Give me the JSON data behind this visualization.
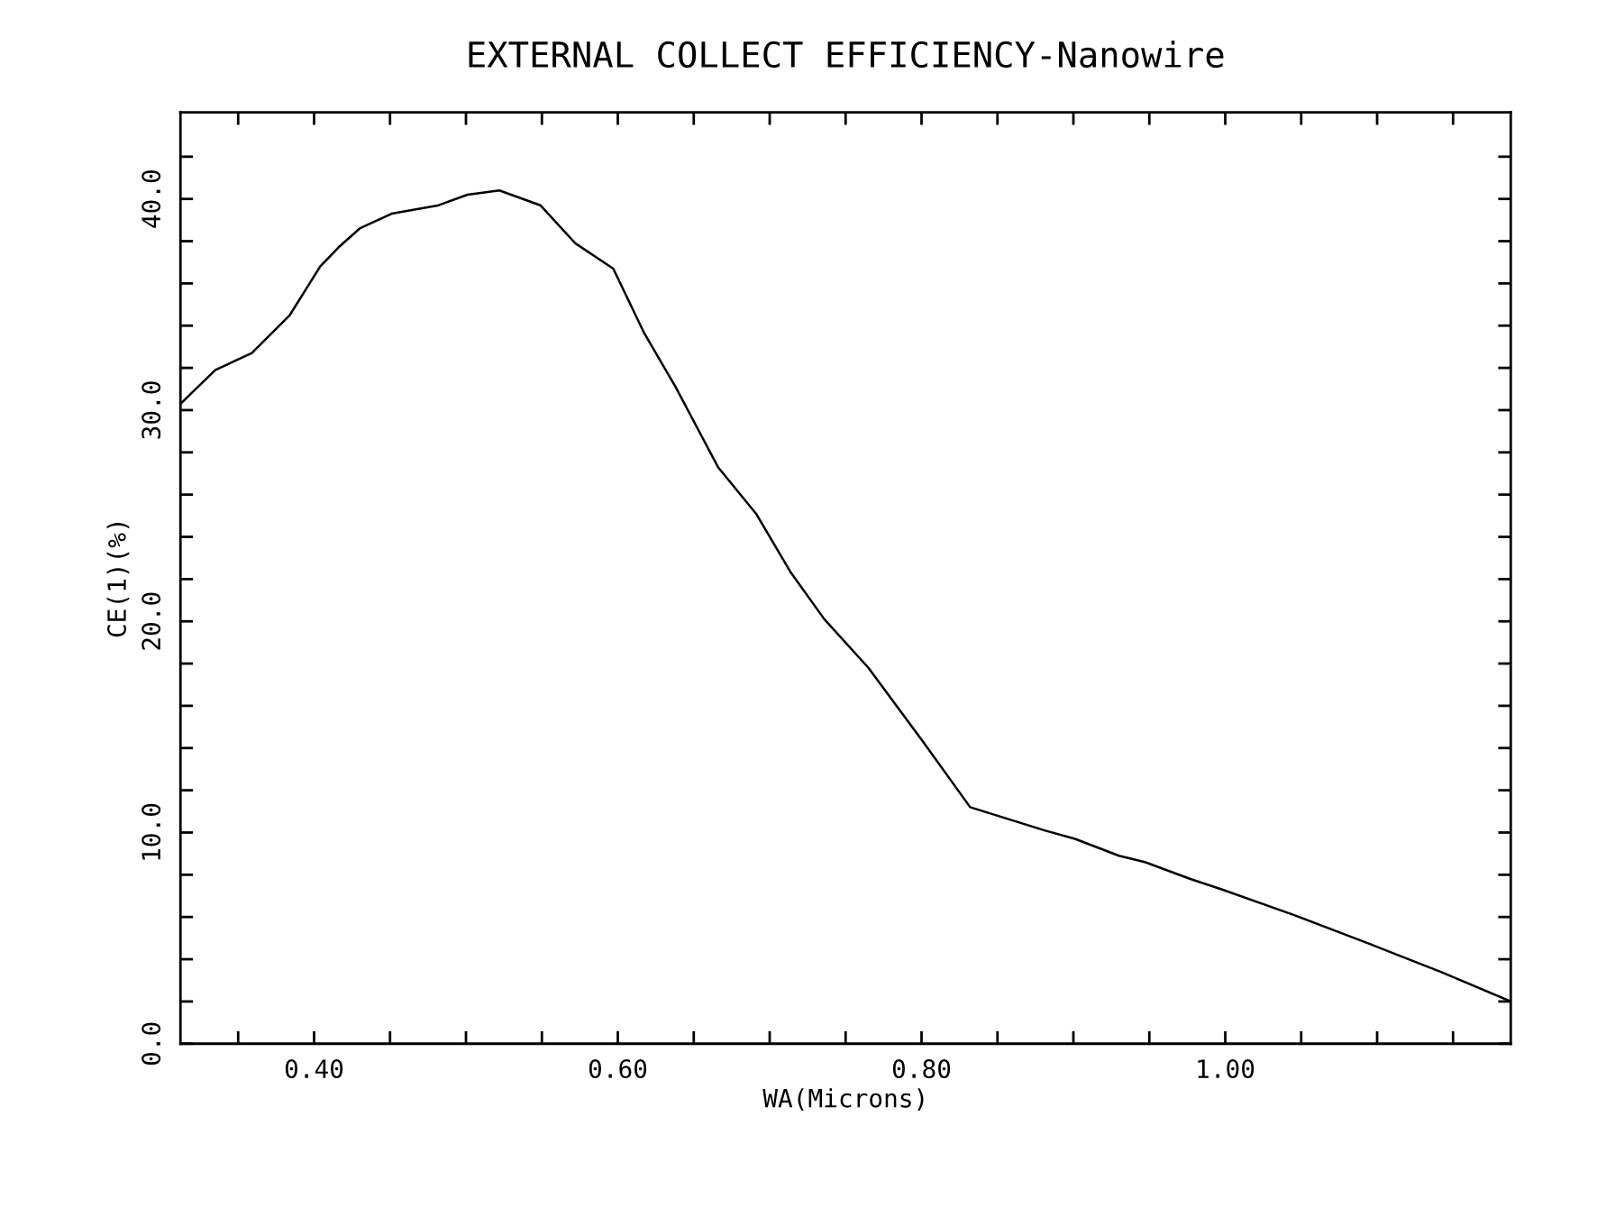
{
  "chart_data": {
    "type": "line",
    "title": "EXTERNAL COLLECT EFFICIENCY-Nanowire",
    "xlabel": "WA(Microns)",
    "ylabel": "CE(1)(%)",
    "x": [
      0.312,
      0.335,
      0.359,
      0.384,
      0.404,
      0.416,
      0.43,
      0.451,
      0.482,
      0.501,
      0.522,
      0.549,
      0.572,
      0.597,
      0.617,
      0.638,
      0.666,
      0.691,
      0.714,
      0.736,
      0.765,
      0.801,
      0.832,
      0.881,
      0.901,
      0.93,
      0.947,
      0.977,
      0.998,
      1.045,
      1.096,
      1.117,
      1.142,
      1.188
    ],
    "series": [
      {
        "color": "#000000",
        "values": [
          30.3,
          31.9,
          32.7,
          34.5,
          36.8,
          37.7,
          38.6,
          39.3,
          39.7,
          40.2,
          40.4,
          39.7,
          37.9,
          36.7,
          33.7,
          31.1,
          27.3,
          25.1,
          22.3,
          20.1,
          17.8,
          14.3,
          11.2,
          10.1,
          9.7,
          8.9,
          8.6,
          7.8,
          7.3,
          6.1,
          4.7,
          4.1,
          3.4,
          2.0
        ]
      }
    ],
    "xlim": [
      0.312,
      1.188
    ],
    "ylim": [
      0,
      44.1
    ],
    "xticks": [
      {
        "value": 0.35,
        "label": null
      },
      {
        "value": 0.4,
        "label": "0.40"
      },
      {
        "value": 0.45,
        "label": null
      },
      {
        "value": 0.5,
        "label": null
      },
      {
        "value": 0.55,
        "label": null
      },
      {
        "value": 0.6,
        "label": "0.60"
      },
      {
        "value": 0.65,
        "label": null
      },
      {
        "value": 0.7,
        "label": null
      },
      {
        "value": 0.75,
        "label": null
      },
      {
        "value": 0.8,
        "label": "0.80"
      },
      {
        "value": 0.85,
        "label": null
      },
      {
        "value": 0.9,
        "label": null
      },
      {
        "value": 0.95,
        "label": null
      },
      {
        "value": 1.0,
        "label": "1.00"
      },
      {
        "value": 1.05,
        "label": null
      },
      {
        "value": 1.1,
        "label": null
      },
      {
        "value": 1.15,
        "label": null
      }
    ],
    "yticks": [
      {
        "value": 0,
        "label": "0.0"
      },
      {
        "value": 2,
        "label": null
      },
      {
        "value": 4,
        "label": null
      },
      {
        "value": 6,
        "label": null
      },
      {
        "value": 8,
        "label": null
      },
      {
        "value": 10,
        "label": "10.0"
      },
      {
        "value": 12,
        "label": null
      },
      {
        "value": 14,
        "label": null
      },
      {
        "value": 16,
        "label": null
      },
      {
        "value": 18,
        "label": null
      },
      {
        "value": 20,
        "label": "20.0"
      },
      {
        "value": 22,
        "label": null
      },
      {
        "value": 24,
        "label": null
      },
      {
        "value": 26,
        "label": null
      },
      {
        "value": 28,
        "label": null
      },
      {
        "value": 30,
        "label": "30.0"
      },
      {
        "value": 32,
        "label": null
      },
      {
        "value": 34,
        "label": null
      },
      {
        "value": 36,
        "label": null
      },
      {
        "value": 38,
        "label": null
      },
      {
        "value": 40,
        "label": "40.0"
      },
      {
        "value": 42,
        "label": null
      }
    ],
    "grid": false,
    "line_style": "solid",
    "marker": "none"
  }
}
